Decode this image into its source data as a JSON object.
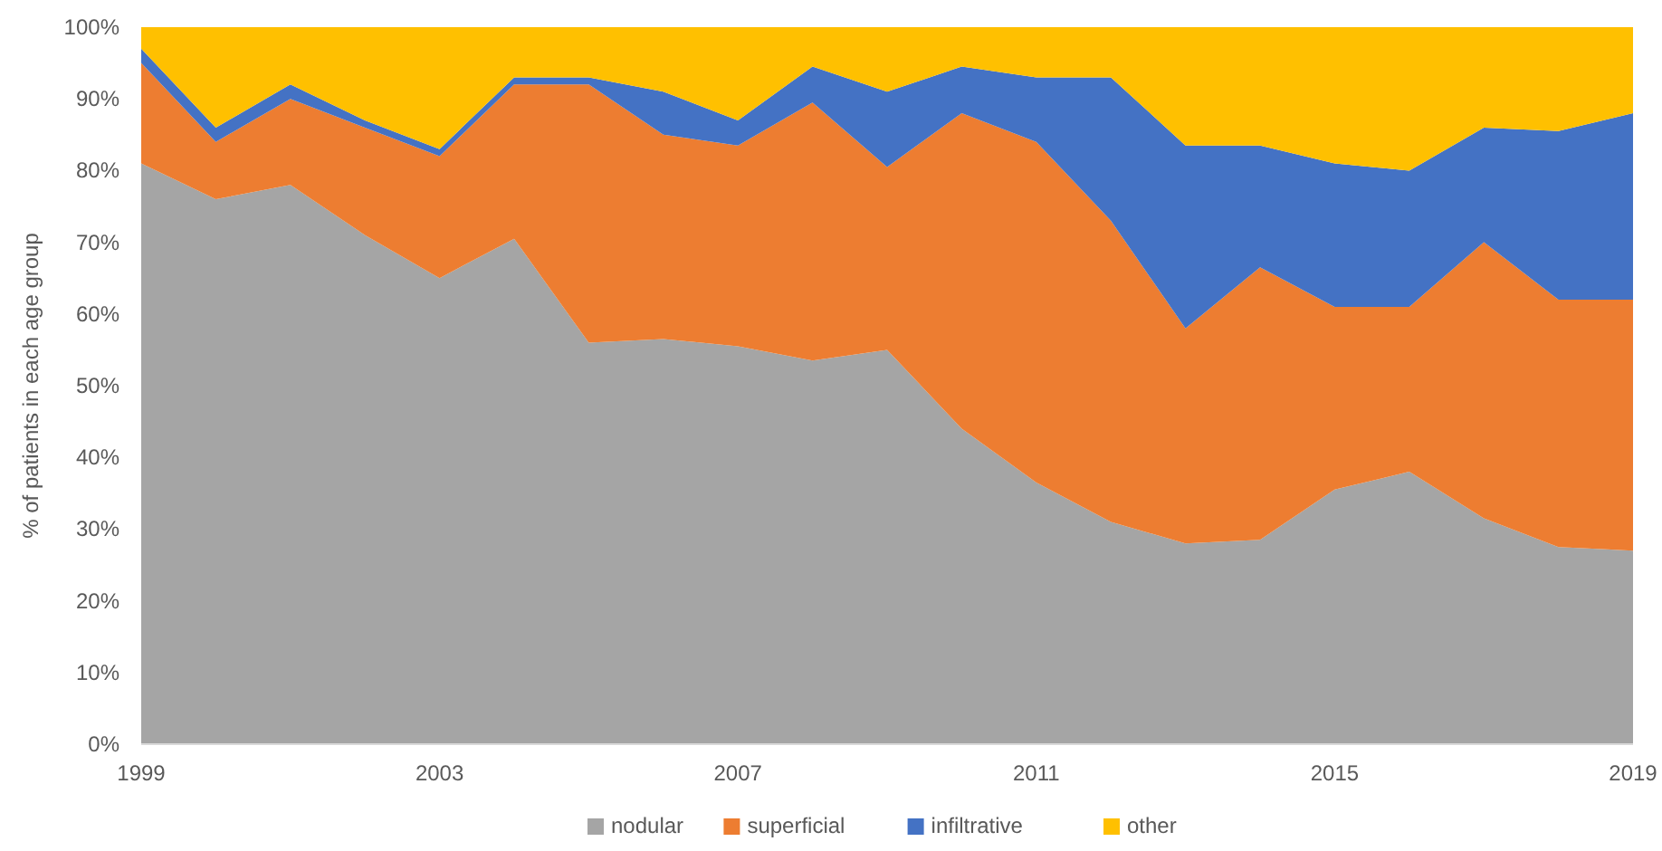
{
  "chart_data": {
    "type": "area",
    "stacked": true,
    "ylabel": "% of patients in each age group",
    "x": [
      1999,
      2000,
      2001,
      2002,
      2003,
      2004,
      2005,
      2006,
      2007,
      2008,
      2009,
      2010,
      2011,
      2012,
      2013,
      2014,
      2015,
      2016,
      2017,
      2018,
      2019
    ],
    "series": [
      {
        "name": "nodular",
        "color": "#a5a5a5",
        "values": [
          81,
          76,
          78,
          71,
          65,
          70.5,
          56,
          56.5,
          55.5,
          53.5,
          55,
          44,
          36.5,
          31,
          28,
          28.5,
          35.5,
          38,
          31.5,
          27.5,
          27
        ]
      },
      {
        "name": "superficial",
        "color": "#ed7d31",
        "values": [
          14,
          8,
          12,
          15,
          17,
          21.5,
          36,
          28.5,
          28,
          36,
          25.5,
          44,
          47.5,
          42,
          30,
          38,
          25.5,
          23,
          38.5,
          34.5,
          35
        ]
      },
      {
        "name": "infiltrative",
        "color": "#4472c4",
        "values": [
          2,
          2,
          2,
          1,
          1,
          1,
          1,
          6,
          3.5,
          5,
          10.5,
          6.5,
          9,
          20,
          25.5,
          17,
          20,
          19,
          16,
          23.5,
          26
        ]
      },
      {
        "name": "other",
        "color": "#ffc000",
        "values": [
          3,
          14,
          8,
          13,
          17,
          7,
          7,
          9,
          13,
          5.5,
          9,
          5.5,
          7,
          7,
          16.5,
          16.5,
          19,
          20,
          14,
          14.5,
          12
        ]
      }
    ],
    "xlim": [
      1999,
      2019
    ],
    "xticks": [
      1999,
      2003,
      2007,
      2011,
      2015,
      2019
    ],
    "ylim": [
      0,
      100
    ],
    "yticks": [
      {
        "value": 0,
        "label": "0%"
      },
      {
        "value": 10,
        "label": "10%"
      },
      {
        "value": 20,
        "label": "20%"
      },
      {
        "value": 30,
        "label": "30%"
      },
      {
        "value": 40,
        "label": "40%"
      },
      {
        "value": 50,
        "label": "50%"
      },
      {
        "value": 60,
        "label": "60%"
      },
      {
        "value": 70,
        "label": "70%"
      },
      {
        "value": 80,
        "label": "80%"
      },
      {
        "value": 90,
        "label": "90%"
      },
      {
        "value": 100,
        "label": "100%"
      }
    ],
    "legend": "bottom"
  }
}
